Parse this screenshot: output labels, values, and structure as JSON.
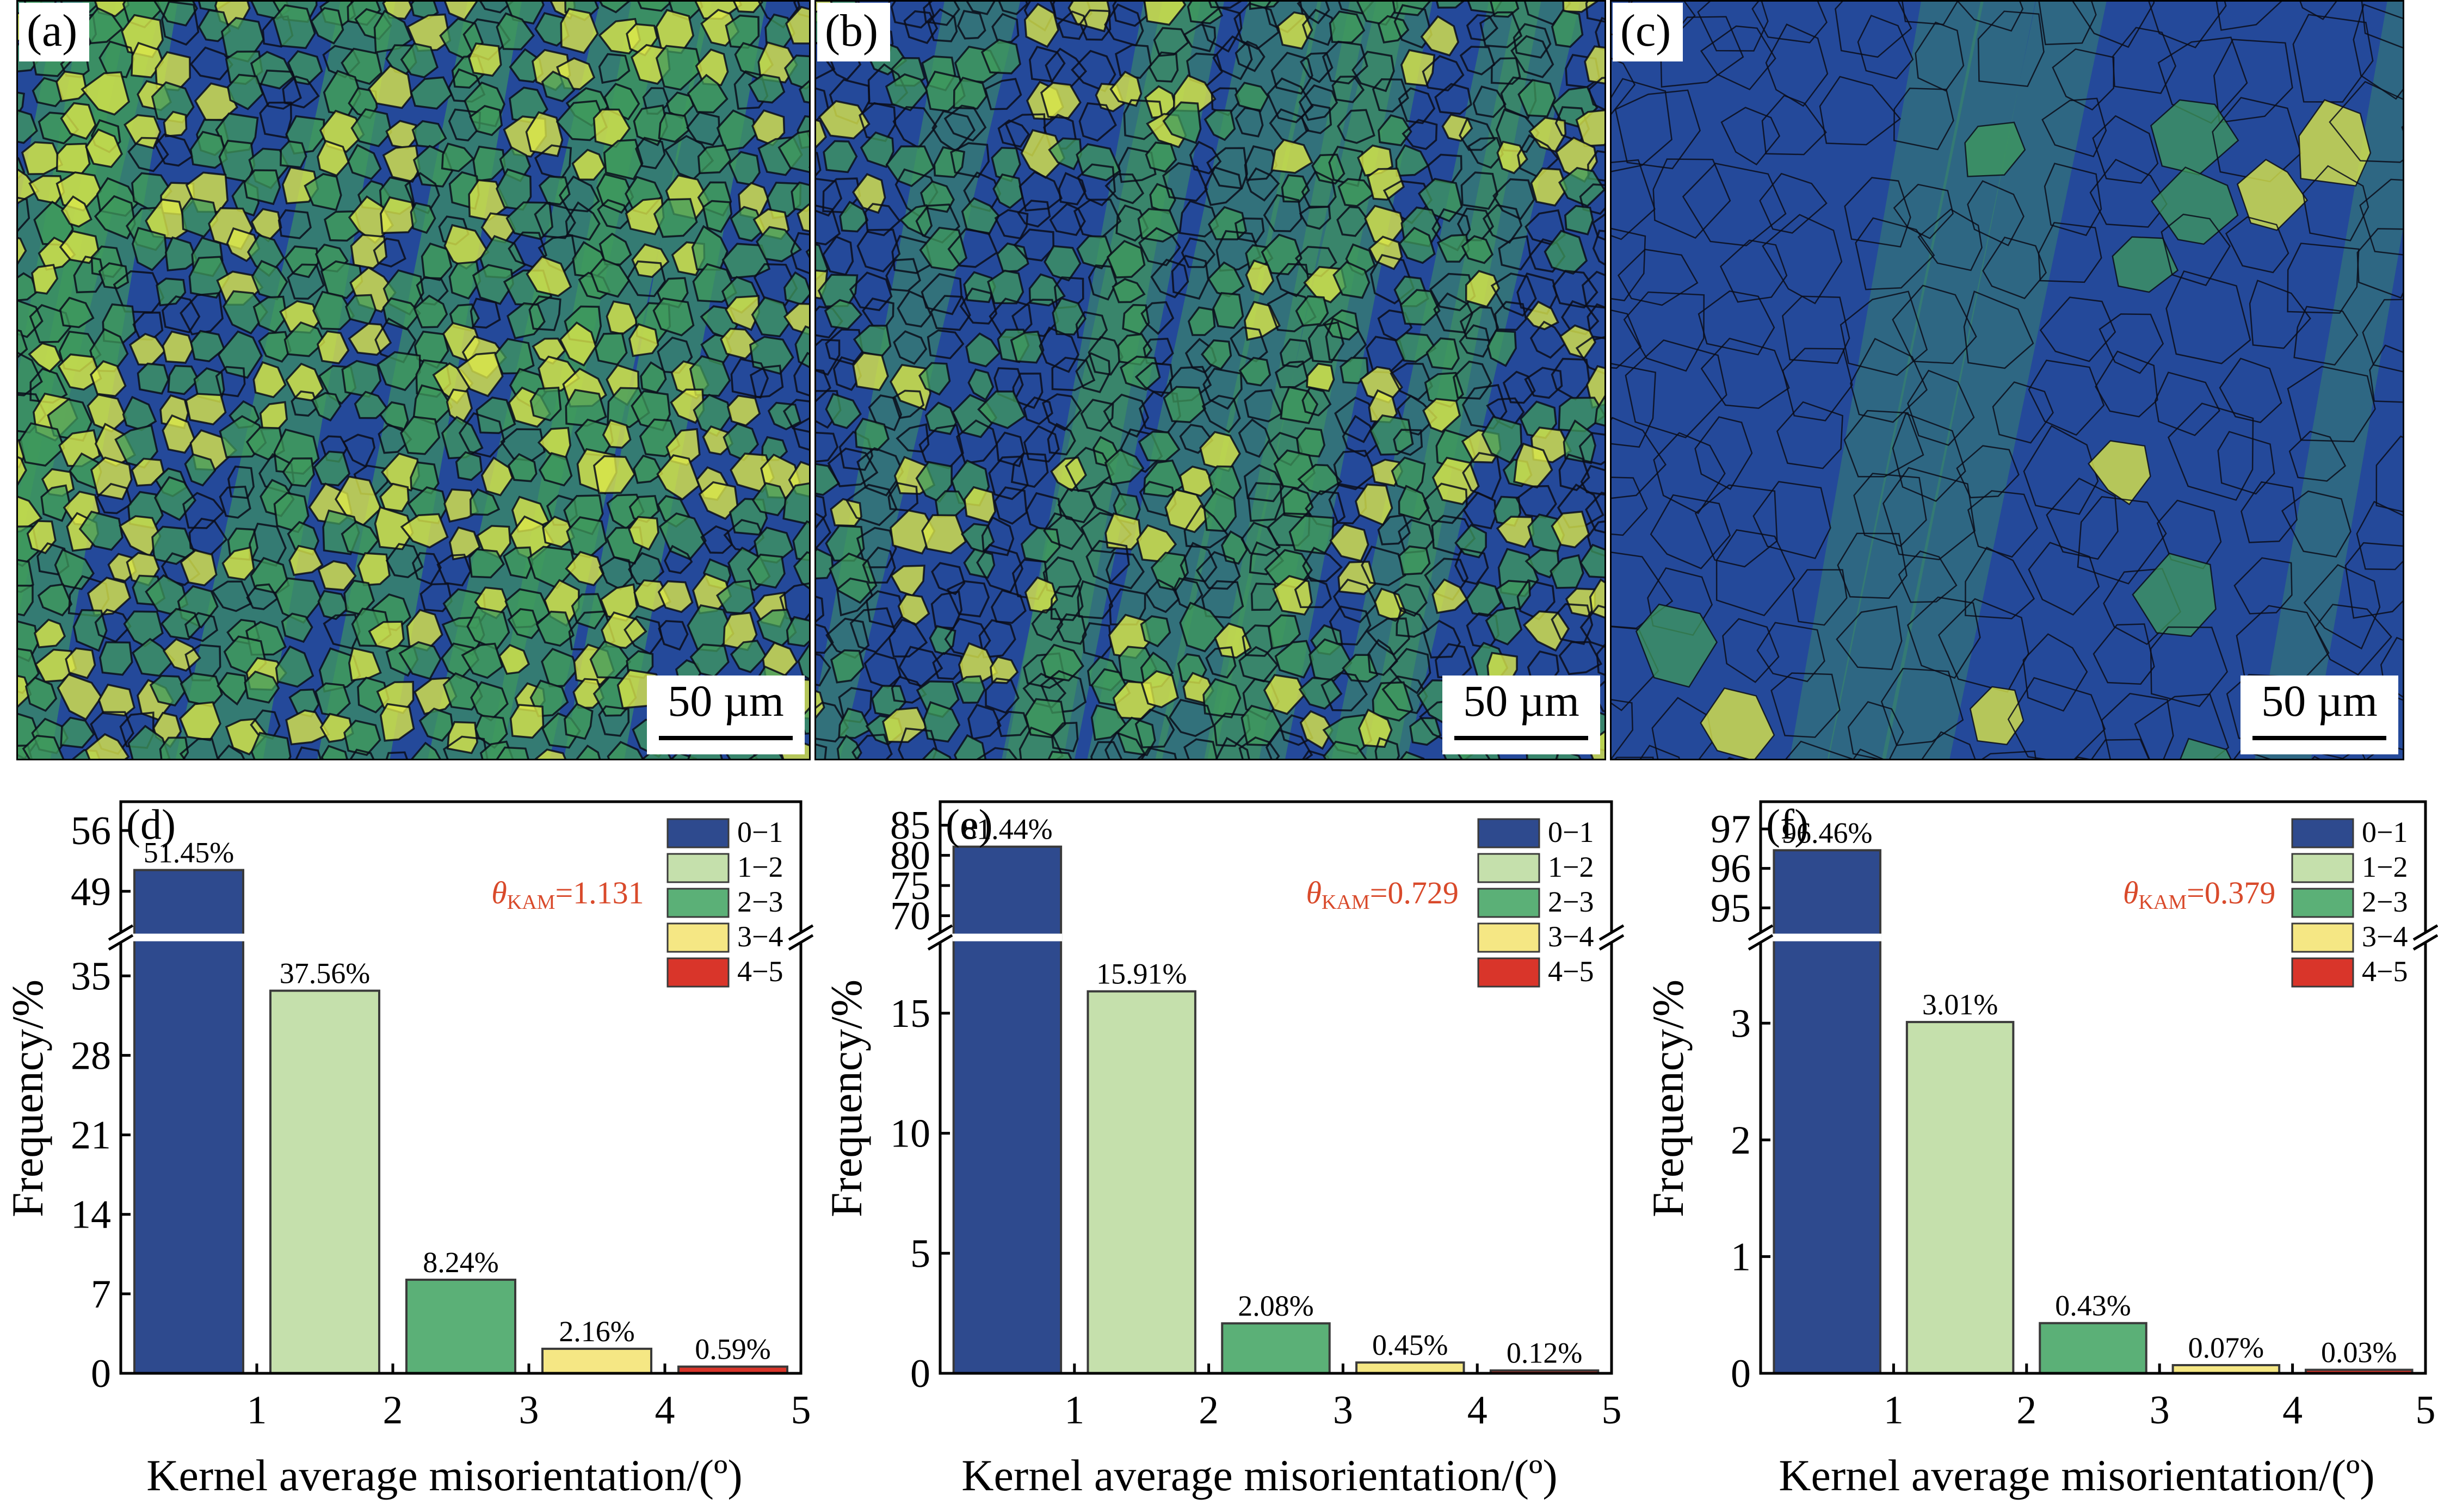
{
  "maps": [
    {
      "label": "(a)",
      "scale_bar": "50 µm",
      "style": "dense"
    },
    {
      "label": "(b)",
      "scale_bar": "50 µm",
      "style": "medium"
    },
    {
      "label": "(c)",
      "scale_bar": "50 µm",
      "style": "sparse"
    }
  ],
  "legend_entries": [
    "0−1",
    "1−2",
    "2−3",
    "3−4",
    "4−5"
  ],
  "colors": {
    "bin_fill": [
      "#2e4a8e",
      "#c5e0ac",
      "#5bb077",
      "#f5e784",
      "#d9352a"
    ],
    "kam_text": "#d94a2b",
    "axis": "#000000",
    "map_base": "#24499a",
    "map_green": "#3f9a5c",
    "map_yellow": "#d9e64a",
    "boundary": "#0b0d1a"
  },
  "chart_data": [
    {
      "panel": "(d)",
      "type": "bar",
      "categories": [
        "0−1",
        "1−2",
        "2−3",
        "3−4",
        "4−5"
      ],
      "values": [
        51.45,
        37.56,
        8.24,
        2.16,
        0.59
      ],
      "value_labels": [
        "51.45%",
        "37.56%",
        "8.24%",
        "2.16%",
        "0.59%"
      ],
      "xlabel": "Kernel average misorientation/(º)",
      "ylabel": "Frequency/%",
      "xlim": [
        0,
        5
      ],
      "x_ticks": [
        "1",
        "2",
        "3",
        "4",
        "5"
      ],
      "y_break": true,
      "ylim_lower": [
        0,
        37
      ],
      "ylim_upper": [
        45.5,
        58
      ],
      "y_ticks_lower": [
        "0",
        "7",
        "14",
        "21",
        "28",
        "35"
      ],
      "y_ticks_upper": [
        "49",
        "56"
      ],
      "theta_symbol": "θ",
      "theta_sub": "KAM",
      "theta_value": "=1.131",
      "legend": "top-right"
    },
    {
      "panel": "(e)",
      "type": "bar",
      "categories": [
        "0−1",
        "1−2",
        "2−3",
        "3−4",
        "4−5"
      ],
      "values": [
        81.44,
        15.91,
        2.08,
        0.45,
        0.12
      ],
      "value_labels": [
        "81.44%",
        "15.91%",
        "2.08%",
        "0.45%",
        "0.12%"
      ],
      "xlabel": "Kernel average misorientation/(º)",
      "ylabel": "Frequency/%",
      "xlim": [
        0,
        5
      ],
      "x_ticks": [
        "1",
        "2",
        "3",
        "4",
        "5"
      ],
      "y_break": true,
      "ylim_lower": [
        0,
        17.5
      ],
      "ylim_upper": [
        69,
        87
      ],
      "y_ticks_lower": [
        "0",
        "5",
        "10",
        "15"
      ],
      "y_ticks_upper": [
        "70",
        "75",
        "80",
        "85"
      ],
      "theta_symbol": "θ",
      "theta_sub": "KAM",
      "theta_value": "=0.729",
      "legend": "top-right"
    },
    {
      "panel": "(f)",
      "type": "bar",
      "categories": [
        "0−1",
        "1−2",
        "2−3",
        "3−4",
        "4−5"
      ],
      "values": [
        96.46,
        3.01,
        0.43,
        0.07,
        0.03
      ],
      "value_labels": [
        "96.46%",
        "3.01%",
        "0.43%",
        "0.07%",
        "0.03%"
      ],
      "xlabel": "Kernel average misorientation/(º)",
      "ylabel": "Frequency/%",
      "xlim": [
        0,
        5
      ],
      "x_ticks": [
        "1",
        "2",
        "3",
        "4",
        "5"
      ],
      "y_break": true,
      "ylim_lower": [
        0,
        3.6
      ],
      "ylim_upper": [
        94.65,
        97.4
      ],
      "y_ticks_lower": [
        "0",
        "1",
        "2",
        "3"
      ],
      "y_ticks_upper": [
        "95",
        "96",
        "97"
      ],
      "theta_symbol": "θ",
      "theta_sub": "KAM",
      "theta_value": "=0.379",
      "legend": "top-right"
    }
  ]
}
